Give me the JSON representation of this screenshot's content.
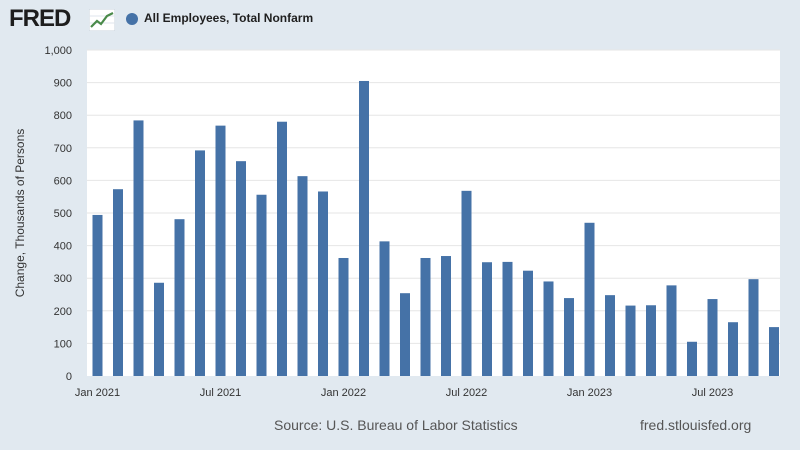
{
  "header": {
    "logo_text": "FRED",
    "logo_icon": "trend-line-icon",
    "legend_label": "All Employees, Total Nonfarm",
    "legend_color": "#4572a7"
  },
  "footer": {
    "source": "Source: U.S. Bureau of Labor Statistics",
    "url": "fred.stlouisfed.org"
  },
  "chart_data": {
    "type": "bar",
    "ylabel": "Change, Thousands of Persons",
    "ylim": [
      0,
      1000
    ],
    "yticks": [
      0,
      100,
      200,
      300,
      400,
      500,
      600,
      700,
      800,
      900,
      1000
    ],
    "ytick_labels": [
      "0",
      "100",
      "200",
      "300",
      "400",
      "500",
      "600",
      "700",
      "800",
      "900",
      "1,000"
    ],
    "x_tick_labels": [
      {
        "index": 0,
        "label": "Jan 2021"
      },
      {
        "index": 6,
        "label": "Jul 2021"
      },
      {
        "index": 12,
        "label": "Jan 2022"
      },
      {
        "index": 18,
        "label": "Jul 2022"
      },
      {
        "index": 24,
        "label": "Jan 2023"
      },
      {
        "index": 30,
        "label": "Jul 2023"
      }
    ],
    "grid": true,
    "bar_color": "#4572a7",
    "categories": [
      "Jan 2021",
      "Feb 2021",
      "Mar 2021",
      "Apr 2021",
      "May 2021",
      "Jun 2021",
      "Jul 2021",
      "Aug 2021",
      "Sep 2021",
      "Oct 2021",
      "Nov 2021",
      "Dec 2021",
      "Jan 2022",
      "Feb 2022",
      "Mar 2022",
      "Apr 2022",
      "May 2022",
      "Jun 2022",
      "Jul 2022",
      "Aug 2022",
      "Sep 2022",
      "Oct 2022",
      "Nov 2022",
      "Dec 2022",
      "Jan 2023",
      "Feb 2023",
      "Mar 2023",
      "Apr 2023",
      "May 2023",
      "Jun 2023",
      "Jul 2023",
      "Aug 2023",
      "Sep 2023",
      "Oct 2023"
    ],
    "values": [
      494,
      573,
      784,
      286,
      481,
      692,
      768,
      659,
      556,
      780,
      613,
      566,
      362,
      905,
      413,
      254,
      362,
      368,
      568,
      349,
      350,
      323,
      290,
      239,
      470,
      248,
      216,
      217,
      278,
      105,
      236,
      165,
      297,
      150
    ]
  }
}
